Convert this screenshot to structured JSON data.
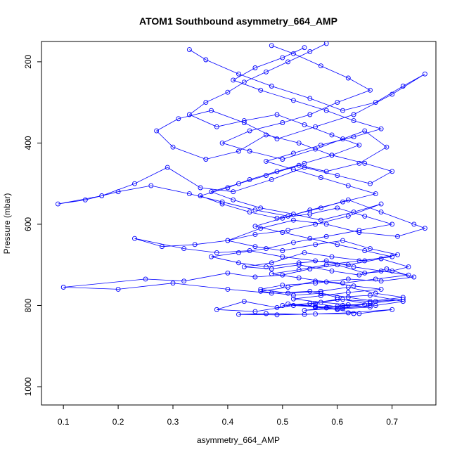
{
  "chart_data": {
    "type": "line",
    "title": "ATOM1 Southbound asymmetry_664_AMP",
    "xlabel": "asymmetry_664_AMP",
    "ylabel": "Pressure (mbar)",
    "xlim": [
      0.06,
      0.78
    ],
    "ylim": [
      1045,
      150
    ],
    "y_axis_reversed": true,
    "x_ticks": [
      0.1,
      0.2,
      0.3,
      0.4,
      0.5,
      0.6,
      0.7
    ],
    "x_tick_labels": [
      "0.1",
      "0.2",
      "0.3",
      "0.4",
      "0.5",
      "0.6",
      "0.7"
    ],
    "y_ticks": [
      200,
      400,
      600,
      800,
      1000
    ],
    "y_tick_labels": [
      "200",
      "400",
      "600",
      "800",
      "1000"
    ],
    "grid": false,
    "legend": "none",
    "marker": "open-circle",
    "series_color": "#0000ff",
    "series": [
      {
        "x": [
          0.33,
          0.36,
          0.42,
          0.48,
          0.55,
          0.61,
          0.67,
          0.72,
          0.76,
          0.7,
          0.63,
          0.56,
          0.49,
          0.43,
          0.37,
          0.31,
          0.27,
          0.3,
          0.36,
          0.42,
          0.47,
          0.53,
          0.59,
          0.65,
          0.7,
          0.66,
          0.6,
          0.54,
          0.48,
          0.41,
          0.35,
          0.29,
          0.23,
          0.17,
          0.09,
          0.14,
          0.2,
          0.26,
          0.33,
          0.39,
          0.45,
          0.51,
          0.57,
          0.62,
          0.68,
          0.74,
          0.76,
          0.71,
          0.64,
          0.58,
          0.52,
          0.46,
          0.4,
          0.34,
          0.28,
          0.23,
          0.32,
          0.38,
          0.44,
          0.5,
          0.56,
          0.62,
          0.68,
          0.73,
          0.7,
          0.65,
          0.6,
          0.55,
          0.5,
          0.45,
          0.4,
          0.32,
          0.25,
          0.1,
          0.2,
          0.3,
          0.4,
          0.48,
          0.55,
          0.6,
          0.66,
          0.72,
          0.67,
          0.61,
          0.55,
          0.49,
          0.43,
          0.38,
          0.45,
          0.52,
          0.58,
          0.64,
          0.7,
          0.62,
          0.54,
          0.47,
          0.42,
          0.49,
          0.56,
          0.63
        ],
        "y": [
          170,
          195,
          230,
          260,
          290,
          320,
          300,
          260,
          230,
          280,
          330,
          360,
          390,
          350,
          320,
          340,
          370,
          410,
          440,
          420,
          380,
          400,
          430,
          450,
          470,
          500,
          480,
          460,
          490,
          520,
          510,
          460,
          500,
          530,
          550,
          540,
          520,
          505,
          525,
          545,
          565,
          580,
          560,
          540,
          570,
          600,
          610,
          630,
          620,
          600,
          590,
          610,
          640,
          650,
          655,
          635,
          660,
          670,
          665,
          680,
          690,
          700,
          685,
          705,
          715,
          720,
          700,
          710,
          725,
          730,
          720,
          740,
          735,
          755,
          760,
          745,
          760,
          770,
          765,
          780,
          775,
          790,
          800,
          785,
          795,
          805,
          790,
          810,
          815,
          800,
          805,
          820,
          810,
          818,
          822,
          820,
          822,
          823,
          821,
          820
        ]
      },
      {
        "x": [
          0.48,
          0.52,
          0.57,
          0.62,
          0.66,
          0.6,
          0.55,
          0.5,
          0.44,
          0.39,
          0.44,
          0.5,
          0.56,
          0.61,
          0.65,
          0.69,
          0.64,
          0.58,
          0.53,
          0.47,
          0.42,
          0.37,
          0.41,
          0.46,
          0.52,
          0.57,
          0.63,
          0.68,
          0.62,
          0.56,
          0.51,
          0.45,
          0.4,
          0.45,
          0.5,
          0.56,
          0.61,
          0.66,
          0.71,
          0.65,
          0.59,
          0.54,
          0.48,
          0.43,
          0.48,
          0.53,
          0.59,
          0.64,
          0.69,
          0.74,
          0.68,
          0.62,
          0.56,
          0.5,
          0.46,
          0.51,
          0.57,
          0.62,
          0.67,
          0.72,
          0.66,
          0.6,
          0.55,
          0.5,
          0.56,
          0.61,
          0.66,
          0.6,
          0.54,
          0.58
        ],
        "y": [
          160,
          180,
          210,
          240,
          270,
          300,
          330,
          350,
          370,
          400,
          420,
          440,
          415,
          390,
          370,
          410,
          450,
          470,
          455,
          480,
          500,
          520,
          540,
          560,
          575,
          590,
          570,
          550,
          580,
          600,
          615,
          625,
          640,
          655,
          665,
          650,
          640,
          660,
          675,
          690,
          680,
          670,
          695,
          705,
          710,
          700,
          715,
          725,
          710,
          730,
          740,
          735,
          745,
          750,
          760,
          770,
          765,
          755,
          770,
          780,
          790,
          785,
          795,
          800,
          795,
          805,
          800,
          808,
          812,
          806
        ]
      },
      {
        "x": [
          0.58,
          0.55,
          0.51,
          0.47,
          0.43,
          0.4,
          0.36,
          0.33,
          0.38,
          0.43,
          0.49,
          0.54,
          0.59,
          0.64,
          0.59,
          0.54,
          0.49,
          0.44,
          0.4,
          0.35,
          0.39,
          0.44,
          0.49,
          0.55,
          0.6,
          0.65,
          0.7,
          0.64,
          0.58,
          0.52,
          0.47,
          0.42,
          0.37,
          0.42,
          0.47,
          0.53,
          0.58,
          0.63,
          0.68,
          0.73,
          0.67,
          0.61,
          0.56,
          0.51,
          0.46,
          0.52,
          0.57,
          0.62,
          0.67,
          0.72,
          0.66,
          0.61,
          0.56,
          0.6,
          0.65
        ],
        "y": [
          155,
          175,
          200,
          225,
          250,
          275,
          300,
          330,
          360,
          345,
          330,
          355,
          380,
          405,
          430,
          450,
          470,
          490,
          510,
          530,
          550,
          570,
          585,
          575,
          560,
          580,
          600,
          615,
          630,
          645,
          660,
          670,
          680,
          695,
          705,
          695,
          690,
          705,
          715,
          725,
          735,
          745,
          740,
          755,
          765,
          775,
          770,
          780,
          790,
          785,
          795,
          800,
          805,
          802,
          798
        ]
      },
      {
        "x": [
          0.54,
          0.5,
          0.45,
          0.41,
          0.46,
          0.52,
          0.58,
          0.63,
          0.68,
          0.63,
          0.57,
          0.52,
          0.47,
          0.52,
          0.57,
          0.62,
          0.67,
          0.61,
          0.55,
          0.5,
          0.45,
          0.5,
          0.55,
          0.6,
          0.65,
          0.7,
          0.64,
          0.58,
          0.53,
          0.48,
          0.53,
          0.58,
          0.63,
          0.68,
          0.62,
          0.57,
          0.52,
          0.57,
          0.62,
          0.66,
          0.61,
          0.56,
          0.51,
          0.56,
          0.6
        ],
        "y": [
          165,
          190,
          215,
          245,
          270,
          295,
          320,
          345,
          365,
          385,
          405,
          425,
          445,
          465,
          485,
          505,
          525,
          545,
          565,
          585,
          605,
          620,
          635,
          650,
          665,
          680,
          690,
          700,
          712,
          722,
          732,
          742,
          752,
          760,
          768,
          776,
          784,
          792,
          798,
          804,
          808,
          802,
          796,
          804,
          810
        ]
      }
    ]
  }
}
